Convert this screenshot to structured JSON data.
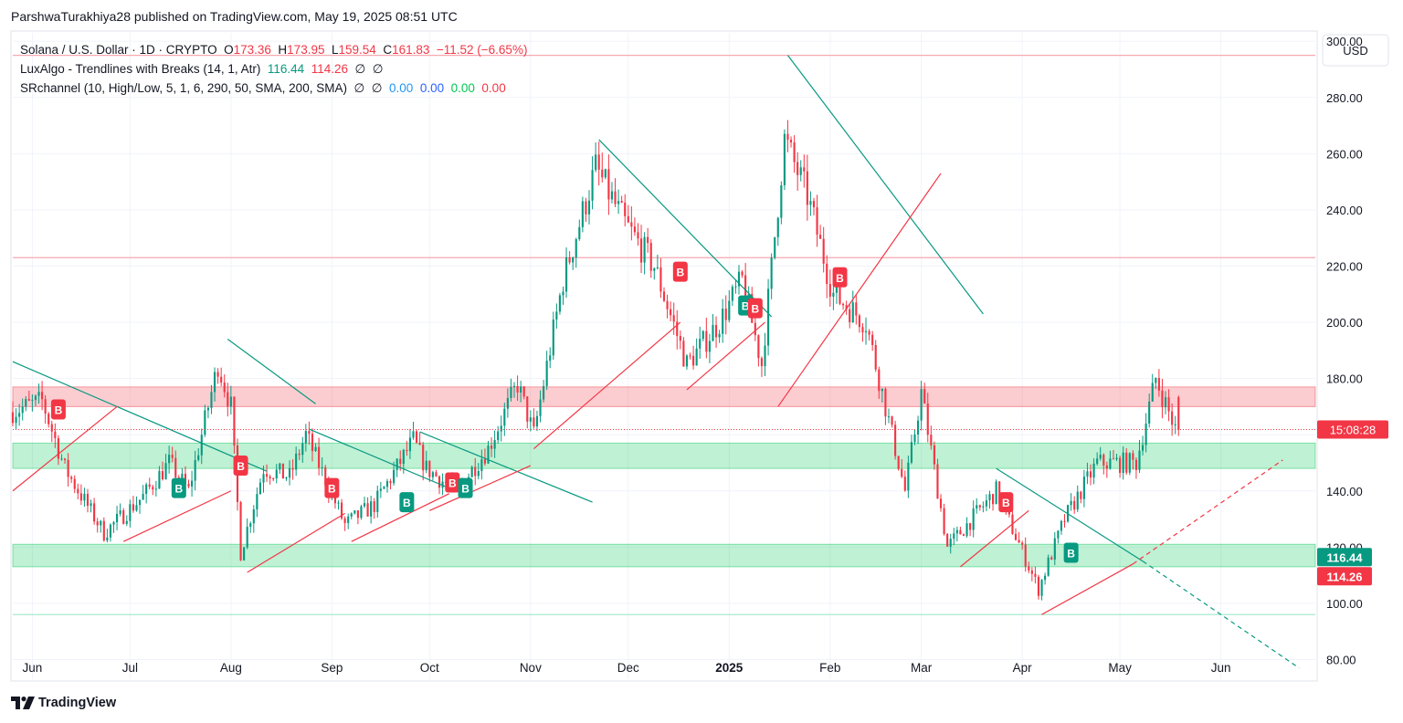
{
  "publisher": "ParshwaTurakhiya28 published on TradingView.com, May 19, 2025 08:51 UTC",
  "legend": {
    "symbol": "Solana / U.S. Dollar · 1D · CRYPTO",
    "open_label": "O",
    "open": "173.36",
    "high_label": "H",
    "high": "173.95",
    "low_label": "L",
    "low": "159.54",
    "close_label": "C",
    "close": "161.83",
    "change": "−11.52 (−6.65%)",
    "luxalgo_name": "LuxAlgo - Trendlines with Breaks (14, 1, Atr)",
    "luxalgo_v1": "116.44",
    "luxalgo_v2": "114.26",
    "luxalgo_v3": "∅",
    "luxalgo_v4": "∅",
    "sr_name": "SRchannel (10, High/Low, 5, 1, 6, 290, 50, SMA, 200, SMA)",
    "sr_v1": "∅",
    "sr_v2": "∅",
    "sr_v3": "0.00",
    "sr_v4": "0.00",
    "sr_v5": "0.00",
    "sr_v6": "0.00"
  },
  "currency": "USD",
  "brand": "TradingView",
  "chart_data": {
    "type": "candlestick",
    "title": "Solana / U.S. Dollar · 1D · CRYPTO",
    "ylim": [
      73,
      303
    ],
    "y_ticks": [
      80,
      100,
      120,
      140,
      160,
      180,
      200,
      220,
      240,
      260,
      280,
      300
    ],
    "y_tick_labels": [
      "80.00",
      "100.00",
      "120.00",
      "140.00",
      "",
      "180.00",
      "200.00",
      "220.00",
      "240.00",
      "260.00",
      "280.00",
      "300.00"
    ],
    "x_range": [
      "2024-05-26",
      "2025-06-30"
    ],
    "x_ticks": [
      {
        "label": "Jun",
        "date": "2024-06-01",
        "bold": false
      },
      {
        "label": "Jul",
        "date": "2024-07-01",
        "bold": false
      },
      {
        "label": "Aug",
        "date": "2024-08-01",
        "bold": false
      },
      {
        "label": "Sep",
        "date": "2024-09-01",
        "bold": false
      },
      {
        "label": "Oct",
        "date": "2024-10-01",
        "bold": false
      },
      {
        "label": "Nov",
        "date": "2024-11-01",
        "bold": false
      },
      {
        "label": "Dec",
        "date": "2024-12-01",
        "bold": false
      },
      {
        "label": "2025",
        "date": "2025-01-01",
        "bold": true
      },
      {
        "label": "Feb",
        "date": "2025-02-01",
        "bold": false
      },
      {
        "label": "Mar",
        "date": "2025-03-01",
        "bold": false
      },
      {
        "label": "Apr",
        "date": "2025-04-01",
        "bold": false
      },
      {
        "label": "May",
        "date": "2025-05-01",
        "bold": false
      },
      {
        "label": "Jun",
        "date": "2025-06-01",
        "bold": false
      }
    ],
    "price_path": [
      [
        "2024-05-26",
        168
      ],
      [
        "2024-06-05",
        172
      ],
      [
        "2024-06-12",
        148
      ],
      [
        "2024-06-24",
        125
      ],
      [
        "2024-07-06",
        138
      ],
      [
        "2024-07-14",
        150
      ],
      [
        "2024-07-20",
        140
      ],
      [
        "2024-07-29",
        185
      ],
      [
        "2024-08-02",
        170
      ],
      [
        "2024-08-05",
        118
      ],
      [
        "2024-08-12",
        148
      ],
      [
        "2024-08-20",
        145
      ],
      [
        "2024-08-25",
        160
      ],
      [
        "2024-09-06",
        128
      ],
      [
        "2024-09-15",
        135
      ],
      [
        "2024-09-27",
        158
      ],
      [
        "2024-10-01",
        148
      ],
      [
        "2024-10-10",
        140
      ],
      [
        "2024-10-20",
        155
      ],
      [
        "2024-10-29",
        178
      ],
      [
        "2024-11-03",
        160
      ],
      [
        "2024-11-12",
        215
      ],
      [
        "2024-11-22",
        255
      ],
      [
        "2024-12-01",
        235
      ],
      [
        "2024-12-10",
        220
      ],
      [
        "2024-12-20",
        185
      ],
      [
        "2024-12-30",
        200
      ],
      [
        "2025-01-06",
        215
      ],
      [
        "2025-01-12",
        185
      ],
      [
        "2025-01-19",
        265
      ],
      [
        "2025-01-26",
        245
      ],
      [
        "2025-02-03",
        210
      ],
      [
        "2025-02-13",
        200
      ],
      [
        "2025-02-25",
        140
      ],
      [
        "2025-03-02",
        175
      ],
      [
        "2025-03-10",
        120
      ],
      [
        "2025-03-25",
        140
      ],
      [
        "2025-04-07",
        105
      ],
      [
        "2025-04-15",
        130
      ],
      [
        "2025-04-25",
        150
      ],
      [
        "2025-05-07",
        150
      ],
      [
        "2025-05-13",
        180
      ],
      [
        "2025-05-19",
        162
      ]
    ],
    "last_candle": {
      "open": 173.36,
      "high": 173.95,
      "low": 159.54,
      "close": 161.83,
      "change": -11.52,
      "change_pct": -6.65
    },
    "current_price": 161.83,
    "current_price_label": "15:08:28",
    "indicator_values": [
      {
        "name": "LuxAlgo upper",
        "value": 116.44,
        "label": "116.44",
        "color": "#089981"
      },
      {
        "name": "LuxAlgo lower",
        "value": 114.26,
        "label": "114.26",
        "color": "#f23645"
      }
    ],
    "sr_zones": [
      {
        "low": 170,
        "high": 177,
        "color": "#f23645"
      },
      {
        "low": 148,
        "high": 157,
        "color": "#00c853"
      },
      {
        "low": 113,
        "high": 121,
        "color": "#00c853"
      }
    ],
    "h_levels": [
      {
        "price": 295,
        "color": "#f7a9b1"
      },
      {
        "price": 223,
        "color": "#f7a9b1"
      },
      {
        "price": 96,
        "color": "#9ee7c8"
      }
    ],
    "trendlines": [
      {
        "color": "#089981",
        "dashed": false,
        "points": [
          [
            "2024-05-26",
            186
          ],
          [
            "2024-08-12",
            147
          ]
        ]
      },
      {
        "color": "#089981",
        "dashed": false,
        "points": [
          [
            "2024-07-31",
            194
          ],
          [
            "2024-08-27",
            171
          ]
        ]
      },
      {
        "color": "#089981",
        "dashed": false,
        "points": [
          [
            "2024-08-25",
            162
          ],
          [
            "2024-10-09",
            140
          ]
        ]
      },
      {
        "color": "#089981",
        "dashed": false,
        "points": [
          [
            "2024-09-28",
            161
          ],
          [
            "2024-11-20",
            136
          ]
        ]
      },
      {
        "color": "#089981",
        "dashed": false,
        "points": [
          [
            "2024-11-22",
            265
          ],
          [
            "2025-01-14",
            202
          ]
        ]
      },
      {
        "color": "#089981",
        "dashed": false,
        "points": [
          [
            "2025-01-19",
            295
          ],
          [
            "2025-03-20",
            203
          ]
        ]
      },
      {
        "color": "#089981",
        "dashed": false,
        "points": [
          [
            "2025-03-24",
            148
          ],
          [
            "2025-05-08",
            115
          ]
        ]
      },
      {
        "color": "#089981",
        "dashed": true,
        "points": [
          [
            "2025-05-08",
            115
          ],
          [
            "2025-06-25",
            77
          ]
        ]
      },
      {
        "color": "#f23645",
        "dashed": false,
        "points": [
          [
            "2024-05-26",
            140
          ],
          [
            "2024-06-27",
            170
          ]
        ]
      },
      {
        "color": "#f23645",
        "dashed": false,
        "points": [
          [
            "2024-06-29",
            122
          ],
          [
            "2024-08-01",
            140
          ]
        ]
      },
      {
        "color": "#f23645",
        "dashed": false,
        "points": [
          [
            "2024-08-06",
            111
          ],
          [
            "2024-09-05",
            132
          ]
        ]
      },
      {
        "color": "#f23645",
        "dashed": false,
        "points": [
          [
            "2024-09-07",
            122
          ],
          [
            "2024-10-07",
            139
          ]
        ]
      },
      {
        "color": "#f23645",
        "dashed": false,
        "points": [
          [
            "2024-10-01",
            133
          ],
          [
            "2024-11-01",
            149
          ]
        ]
      },
      {
        "color": "#f23645",
        "dashed": false,
        "points": [
          [
            "2024-11-02",
            155
          ],
          [
            "2024-12-17",
            200
          ]
        ]
      },
      {
        "color": "#f23645",
        "dashed": false,
        "points": [
          [
            "2024-12-19",
            176
          ],
          [
            "2025-01-12",
            200
          ]
        ]
      },
      {
        "color": "#f23645",
        "dashed": false,
        "points": [
          [
            "2025-01-16",
            170
          ],
          [
            "2025-03-07",
            253
          ]
        ]
      },
      {
        "color": "#f23645",
        "dashed": false,
        "points": [
          [
            "2025-03-13",
            113
          ],
          [
            "2025-04-03",
            133
          ]
        ]
      },
      {
        "color": "#f23645",
        "dashed": false,
        "points": [
          [
            "2025-04-07",
            96
          ],
          [
            "2025-05-05",
            114
          ]
        ]
      },
      {
        "color": "#f23645",
        "dashed": true,
        "points": [
          [
            "2025-05-05",
            114
          ],
          [
            "2025-06-20",
            151
          ]
        ]
      }
    ],
    "break_markers": [
      {
        "type": "bear",
        "label": "B",
        "date": "2024-06-09",
        "price": 169
      },
      {
        "type": "bull",
        "label": "B",
        "date": "2024-07-16",
        "price": 141
      },
      {
        "type": "bear",
        "label": "B",
        "date": "2024-08-04",
        "price": 149
      },
      {
        "type": "bear",
        "label": "B",
        "date": "2024-09-01",
        "price": 141
      },
      {
        "type": "bull",
        "label": "B",
        "date": "2024-09-24",
        "price": 136
      },
      {
        "type": "bear",
        "label": "B",
        "date": "2024-10-08",
        "price": 143
      },
      {
        "type": "bull",
        "label": "B",
        "date": "2024-10-12",
        "price": 141
      },
      {
        "type": "bear",
        "label": "B",
        "date": "2024-12-17",
        "price": 218
      },
      {
        "type": "bull",
        "label": "B",
        "date": "2025-01-06",
        "price": 206
      },
      {
        "type": "bear",
        "label": "B",
        "date": "2025-01-09",
        "price": 205
      },
      {
        "type": "bear",
        "label": "B",
        "date": "2025-02-04",
        "price": 216
      },
      {
        "type": "bear",
        "label": "B",
        "date": "2025-03-27",
        "price": 136
      },
      {
        "type": "bull",
        "label": "B",
        "date": "2025-04-16",
        "price": 118
      }
    ],
    "colors": {
      "up": "#089981",
      "down": "#f23645",
      "grid": "#f0f3fa",
      "axis_text": "#131722"
    }
  }
}
